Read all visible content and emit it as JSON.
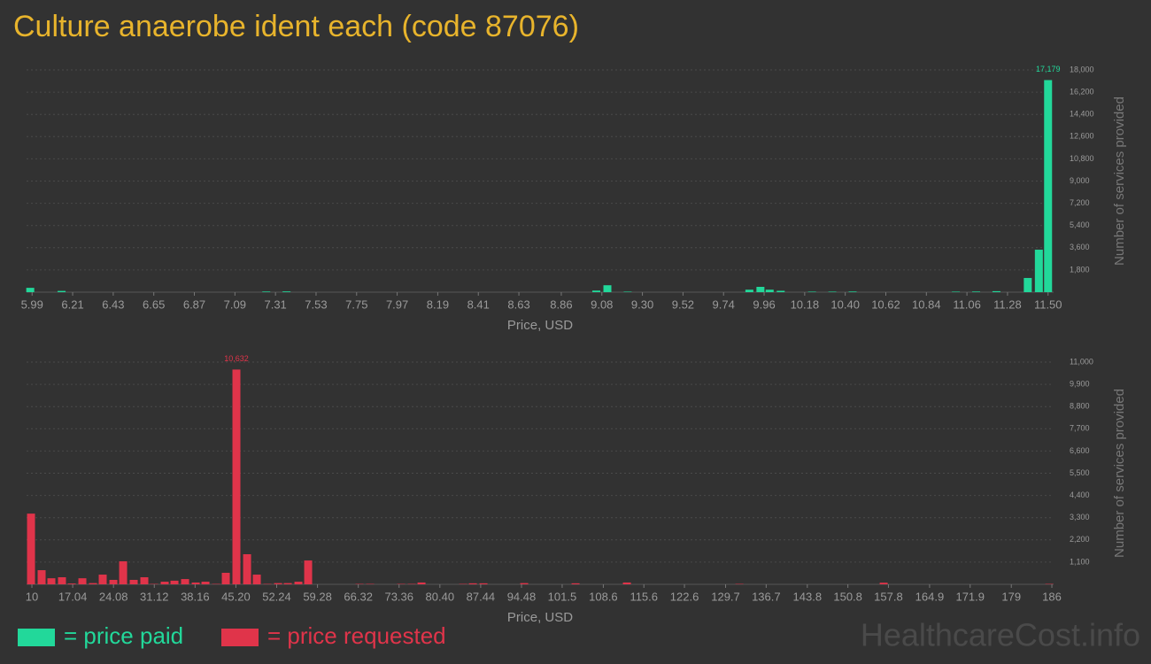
{
  "title": "Culture anaerobe ident each (code 87076)",
  "legend": [
    {
      "label": "= price paid",
      "color": "#22d89a"
    },
    {
      "label": "= price requested",
      "color": "#e0344a"
    }
  ],
  "watermark": "HealthcareCost.info",
  "chart_data": [
    {
      "type": "bar",
      "color": "#22d89a",
      "grid": true,
      "xlabel": "Price, USD",
      "ylabel": "Number of services provided",
      "x": [
        5.98,
        6.15,
        7.26,
        7.37,
        9.05,
        9.11,
        9.22,
        9.88,
        9.94,
        9.99,
        10.05,
        10.22,
        10.33,
        10.44,
        11.0,
        11.11,
        11.22,
        11.39,
        11.45,
        11.5
      ],
      "values": [
        350,
        100,
        50,
        60,
        130,
        560,
        40,
        200,
        430,
        200,
        110,
        40,
        40,
        50,
        40,
        50,
        80,
        1150,
        3440,
        17179
      ],
      "value_labels": [
        null,
        null,
        null,
        null,
        null,
        null,
        null,
        null,
        null,
        null,
        null,
        null,
        null,
        null,
        null,
        null,
        null,
        null,
        null,
        "17,179"
      ],
      "xlim": [
        5.96,
        11.53
      ],
      "xticks": [
        5.99,
        6.21,
        6.43,
        6.65,
        6.87,
        7.09,
        7.31,
        7.53,
        7.75,
        7.97,
        8.19,
        8.41,
        8.63,
        8.86,
        9.08,
        {
          "value": 9.3,
          "label": "9.30"
        },
        9.52,
        9.74,
        9.96,
        10.18,
        {
          "value": 10.4,
          "label": "10.40"
        },
        10.62,
        10.84,
        11.06,
        11.28,
        {
          "value": 11.5,
          "label": "11.50"
        }
      ],
      "ylim": [
        0,
        18000
      ],
      "yticks": [
        {
          "value": 1800,
          "label": "1,800"
        },
        {
          "value": 3600,
          "label": "3,600"
        },
        {
          "value": 5400,
          "label": "5,400"
        },
        {
          "value": 7200,
          "label": "7,200"
        },
        {
          "value": 9000,
          "label": "9,000"
        },
        {
          "value": 10800,
          "label": "10,800"
        },
        {
          "value": 12600,
          "label": "12,600"
        },
        {
          "value": 14400,
          "label": "14,400"
        },
        {
          "value": 16200,
          "label": "16,200"
        },
        {
          "value": 18000,
          "label": "18,000"
        }
      ]
    },
    {
      "type": "bar",
      "color": "#e0344a",
      "grid": true,
      "xlabel": "Price, USD",
      "ylabel": "Number of services provided",
      "x": [
        9.85,
        11.68,
        13.36,
        15.19,
        16.88,
        18.71,
        20.54,
        22.22,
        24.06,
        25.74,
        27.57,
        29.4,
        31.08,
        32.92,
        34.6,
        36.43,
        38.27,
        39.95,
        41.78,
        43.46,
        45.29,
        47.13,
        48.81,
        50.64,
        52.48,
        54.16,
        55.99,
        57.67,
        66.53,
        68.36,
        73.71,
        75.55,
        77.23,
        84.41,
        86.09,
        87.92,
        94.95,
        103.81,
        112.67,
        132.08,
        156.98,
        185.55
      ],
      "values": [
        3500,
        700,
        300,
        350,
        40,
        300,
        60,
        480,
        220,
        1140,
        220,
        350,
        20,
        130,
        180,
        260,
        90,
        130,
        20,
        570,
        10632,
        1490,
        480,
        20,
        60,
        60,
        130,
        1180,
        20,
        20,
        20,
        20,
        90,
        20,
        50,
        50,
        60,
        50,
        90,
        20,
        80,
        20
      ],
      "value_labels": [
        null,
        null,
        null,
        null,
        null,
        null,
        null,
        null,
        null,
        null,
        null,
        null,
        null,
        null,
        null,
        null,
        null,
        null,
        null,
        null,
        "10,632",
        null,
        null,
        null,
        null,
        null,
        null,
        null,
        null,
        null,
        null,
        null,
        null,
        null,
        null,
        null,
        null,
        null,
        null,
        null,
        null,
        null
      ],
      "xlim": [
        9.08,
        186.3
      ],
      "xticks": [
        10,
        17.04,
        24.08,
        31.12,
        38.16,
        {
          "value": 45.2,
          "label": "45.20"
        },
        52.24,
        59.28,
        66.32,
        73.36,
        {
          "value": 80.4,
          "label": "80.40"
        },
        87.44,
        94.48,
        101.5,
        108.6,
        115.6,
        122.6,
        129.7,
        136.7,
        143.8,
        150.8,
        157.8,
        164.9,
        171.9,
        179,
        186
      ],
      "ylim": [
        0,
        11000
      ],
      "yticks": [
        {
          "value": 1100,
          "label": "1,100"
        },
        {
          "value": 2200,
          "label": "2,200"
        },
        {
          "value": 3300,
          "label": "3,300"
        },
        {
          "value": 4400,
          "label": "4,400"
        },
        {
          "value": 5500,
          "label": "5,500"
        },
        {
          "value": 6600,
          "label": "6,600"
        },
        {
          "value": 7700,
          "label": "7,700"
        },
        {
          "value": 8800,
          "label": "8,800"
        },
        {
          "value": 9900,
          "label": "9,900"
        },
        {
          "value": 11000,
          "label": "11,000"
        }
      ]
    }
  ]
}
